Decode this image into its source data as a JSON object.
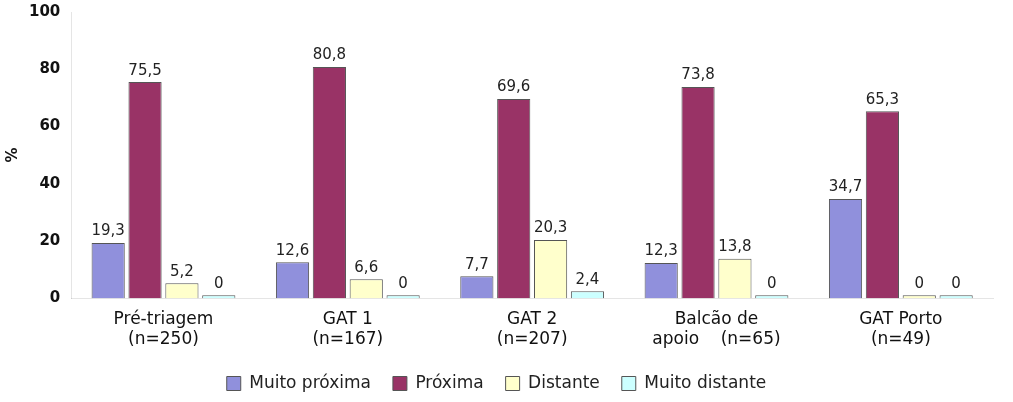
{
  "chart_data": {
    "type": "bar",
    "ylabel": "%",
    "categories": [
      "Pré-triagem\n(n=250)",
      "GAT 1\n(n=167)",
      "GAT 2\n(n=207)",
      "Balcão de\napoio    (n=65)",
      "GAT Porto\n(n=49)"
    ],
    "series": [
      {
        "name": "Muito próxima",
        "color": "#9090dc",
        "values": [
          19.3,
          12.6,
          7.7,
          12.3,
          34.7
        ],
        "value_labels": [
          "19,3",
          "12,6",
          "7,7",
          "12,3",
          "34,7"
        ]
      },
      {
        "name": "Próxima",
        "color": "#993366",
        "values": [
          75.5,
          80.8,
          69.6,
          73.8,
          65.3
        ],
        "value_labels": [
          "75,5",
          "80,8",
          "69,6",
          "73,8",
          "65,3"
        ]
      },
      {
        "name": "Distante",
        "color": "#ffffcc",
        "values": [
          5.2,
          6.6,
          20.3,
          13.8,
          0
        ],
        "value_labels": [
          "5,2",
          "6,6",
          "20,3",
          "13,8",
          "0"
        ]
      },
      {
        "name": "Muito distante",
        "color": "#ccffff",
        "values": [
          0,
          0,
          2.4,
          0,
          0
        ],
        "value_labels": [
          "0",
          "0",
          "2,4",
          "0",
          "0"
        ]
      }
    ],
    "ylim": [
      0,
      100
    ],
    "yticks": [
      0,
      20,
      40,
      60,
      80,
      100
    ],
    "grid": false,
    "legend": "bottom"
  }
}
